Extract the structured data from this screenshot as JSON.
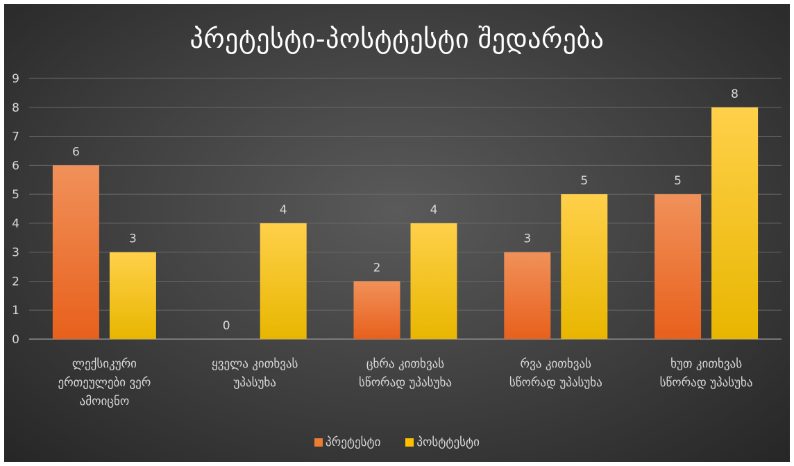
{
  "chart_data": {
    "type": "bar",
    "title": "პრეტესტი-პოსტტესტი შედარება",
    "categories": [
      [
        "ლექსიკური",
        "ერთეულები ვერ",
        "ამოიცნო"
      ],
      [
        "ყველა კითხვას",
        "უპასუხა"
      ],
      [
        "ცხრა კითხვას",
        "სწორად უპასუხა"
      ],
      [
        "რვა კითხვას",
        "სწორად უპასუხა"
      ],
      [
        "ხუთ კითხვას",
        "სწორად უპასუხა"
      ]
    ],
    "series": [
      {
        "name": "პრეტესტი",
        "values": [
          6,
          0,
          2,
          3,
          5
        ],
        "color_top": "#f0915a",
        "color_bottom": "#e8601c"
      },
      {
        "name": "პოსტტესტი",
        "values": [
          3,
          4,
          4,
          5,
          8
        ],
        "color_top": "#ffd04a",
        "color_bottom": "#e8b600"
      }
    ],
    "ylim": [
      0,
      9
    ],
    "yticks": [
      "0",
      "1",
      "2",
      "3",
      "4",
      "5",
      "6",
      "7",
      "8",
      "9"
    ],
    "legend_position": "bottom",
    "grid": true
  },
  "colors": {
    "legend_pre": "#ed7d31",
    "legend_post": "#ffc000",
    "gridline": "#6a6a6a",
    "text": "#d9d9d9"
  }
}
